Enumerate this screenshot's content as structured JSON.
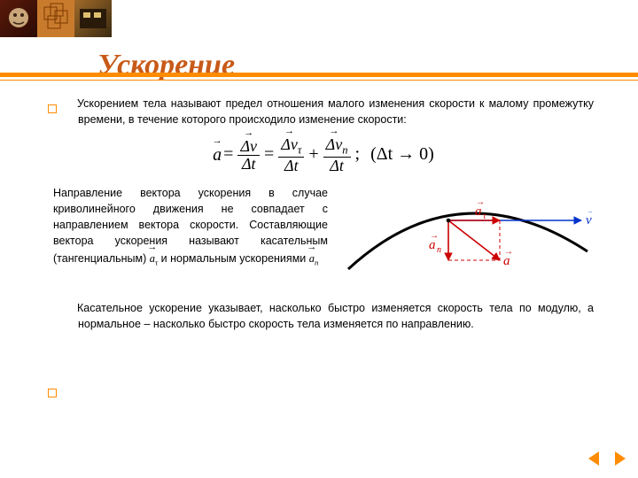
{
  "colors": {
    "title": "#c85a19",
    "rule": "#ff8c00",
    "text": "#000000",
    "nav_arrow": "#ff8c00",
    "diagram_curve": "#000000",
    "diagram_v": "#0033cc",
    "diagram_a": "#cc0000"
  },
  "title": "Ускорение",
  "para1_lead": "Ускорением",
  "para1_rest": "  тела называют предел отношения малого изменения скорости  к малому промежутку времени, в течение которого происходило изменение скорости:",
  "formula": {
    "lhs_symbol": "a",
    "terms": [
      {
        "num": "Δv",
        "num_vec": true,
        "den": "Δt"
      },
      {
        "num": "Δv",
        "num_vec": true,
        "num_sub": "τ",
        "den": "Δt"
      },
      {
        "num": "Δv",
        "num_vec": true,
        "num_sub": "n",
        "den": "Δt"
      }
    ],
    "suffix": ";",
    "limit": "(Δt → 0)"
  },
  "para2_a": "Направление вектора ускорения  в случае криволинейного движения не совпадает с направлением вектора скорости. Составляющие вектора ускорения  называют касательным (тангенциальным) ",
  "para2_sym1": "a",
  "para2_sym1_sub": "τ",
  "para2_b": "и нормальным ускорениями ",
  "para2_sym2": "a",
  "para2_sym2_sub": "n",
  "para3": "Касательное ускорение указывает, насколько быстро изменяется скорость тела по модулю, а нормальное – насколько быстро скорость тела изменяется по направлению.",
  "diagram": {
    "v_label": "v",
    "at_label": "a",
    "at_sub": "τ",
    "an_label": "a",
    "an_sub": "n",
    "a_label": "a",
    "curve_stroke_width": 3,
    "vec_stroke_width": 1.6,
    "dash": "4,3"
  }
}
